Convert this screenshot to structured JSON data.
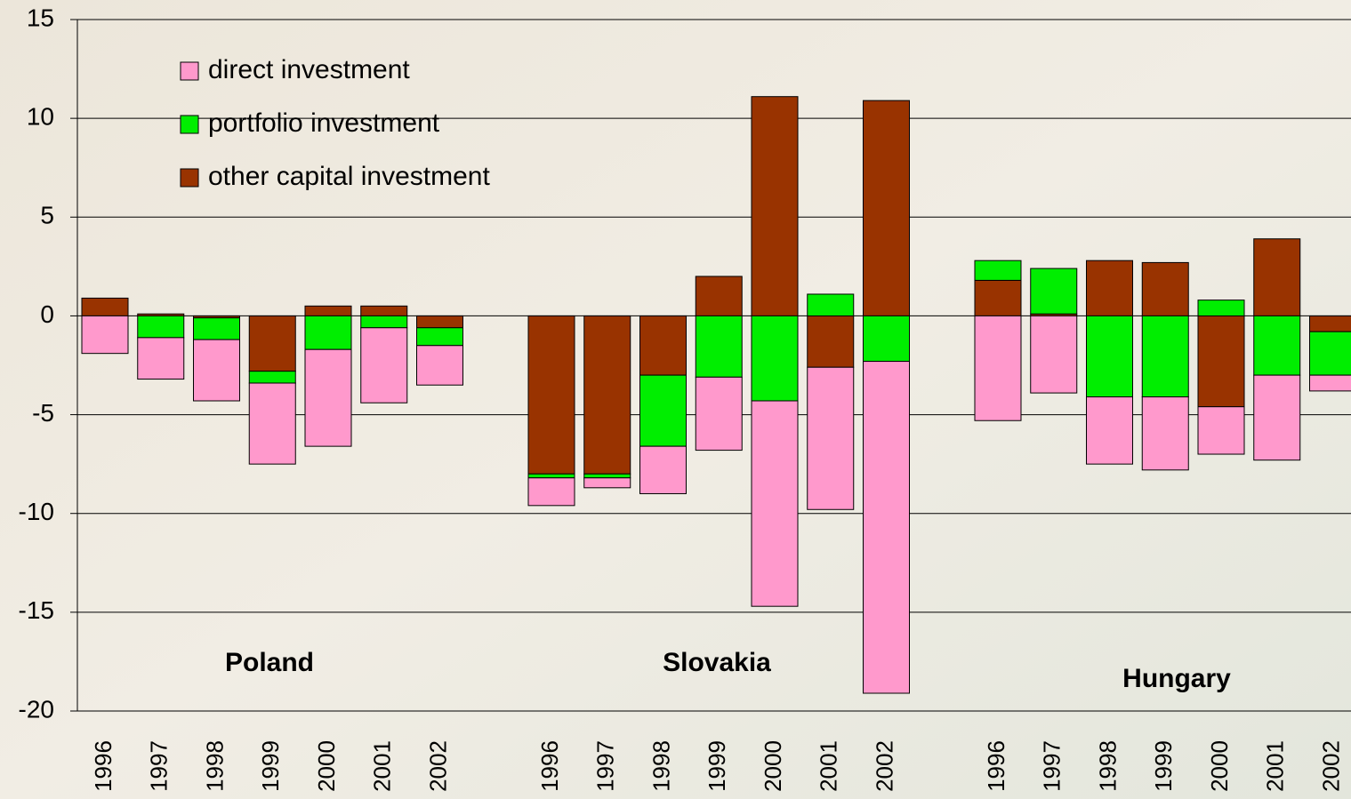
{
  "chart_data": {
    "type": "stacked-bar",
    "groups": [
      {
        "name": "Poland",
        "categories": [
          "1996",
          "1997",
          "1998",
          "1999",
          "2000",
          "2001",
          "2002"
        ]
      },
      {
        "name": "Slovakia",
        "categories": [
          "1996",
          "1997",
          "1998",
          "1999",
          "2000",
          "2001",
          "2002"
        ]
      },
      {
        "name": "Hungary",
        "categories": [
          "1996",
          "1997",
          "1998",
          "1999",
          "2000",
          "2001",
          "2002"
        ]
      }
    ],
    "series": [
      {
        "name": "direct investment",
        "color": "#ff99cc",
        "values": [
          -1.9,
          -2.1,
          -3.1,
          -4.1,
          -4.9,
          -3.8,
          -2.0,
          -1.4,
          -0.5,
          -2.4,
          -3.7,
          -10.4,
          -7.2,
          -16.8,
          -5.3,
          -3.9,
          -3.4,
          -3.7,
          -2.4,
          -4.3,
          -0.8
        ]
      },
      {
        "name": "portfolio investment",
        "color": "#00ee00",
        "values": [
          0,
          -1.1,
          -1.1,
          -0.6,
          -1.7,
          -0.6,
          -0.9,
          -0.2,
          -0.2,
          -3.6,
          -3.1,
          -4.3,
          1.1,
          -2.3,
          1.0,
          2.3,
          -4.1,
          -4.1,
          0.8,
          -3.0,
          -2.2
        ]
      },
      {
        "name": "other capital investment",
        "color": "#993300",
        "values": [
          0.9,
          0.1,
          -0.1,
          -2.8,
          0.5,
          0.5,
          -0.6,
          -8.0,
          -8.0,
          -3.0,
          2.0,
          11.1,
          -2.6,
          10.9,
          1.8,
          0.1,
          2.8,
          2.7,
          -4.6,
          3.9,
          -0.8
        ]
      }
    ],
    "ylim": [
      -20,
      15
    ],
    "yticks": [
      -20,
      -15,
      -10,
      -5,
      0,
      5,
      10,
      15
    ],
    "grid": true
  }
}
